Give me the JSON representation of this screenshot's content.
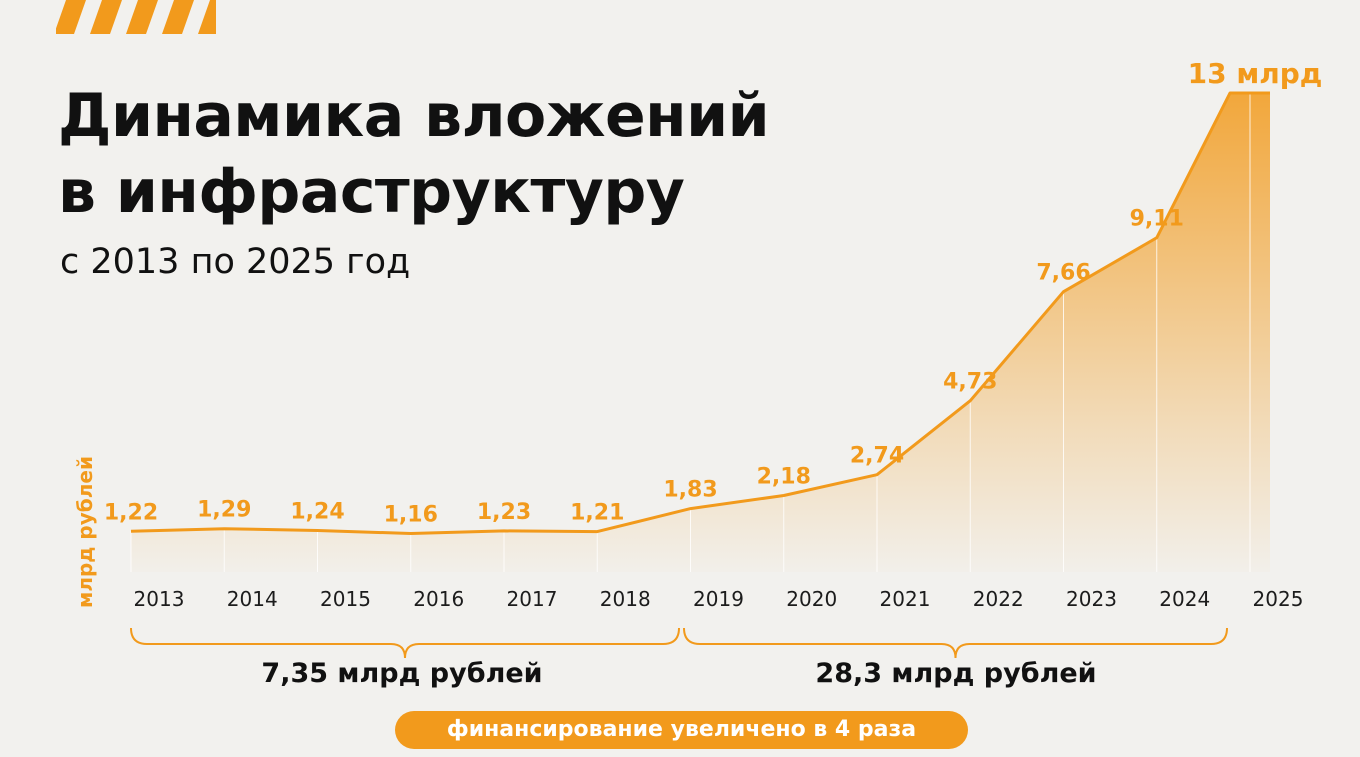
{
  "title_line1": "Динамика вложений",
  "title_line2": "в инфраструктуру",
  "subtitle": "с 2013 по 2025 год",
  "accent_color": "#f29a1c",
  "chart_data": {
    "type": "area",
    "ylabel": "млрд рублей",
    "x": [
      "2013",
      "2014",
      "2015",
      "2016",
      "2017",
      "2018",
      "2019",
      "2020",
      "2021",
      "2022",
      "2023",
      "2024",
      "2025"
    ],
    "values": [
      1.22,
      1.29,
      1.24,
      1.16,
      1.23,
      1.21,
      1.83,
      2.18,
      2.74,
      4.73,
      7.66,
      9.11,
      13
    ],
    "data_labels": [
      "1,22",
      "1,29",
      "1,24",
      "1,16",
      "1,23",
      "1,21",
      "1,83",
      "2,18",
      "2,74",
      "4,73",
      "7,66",
      "9,11",
      "13 млрд"
    ],
    "grid": false,
    "legend": "none"
  },
  "periods": [
    {
      "label": "7,35 млрд рублей"
    },
    {
      "label": "28,3 млрд рублей"
    }
  ],
  "note": "финансирование увеличено в 4 раза"
}
